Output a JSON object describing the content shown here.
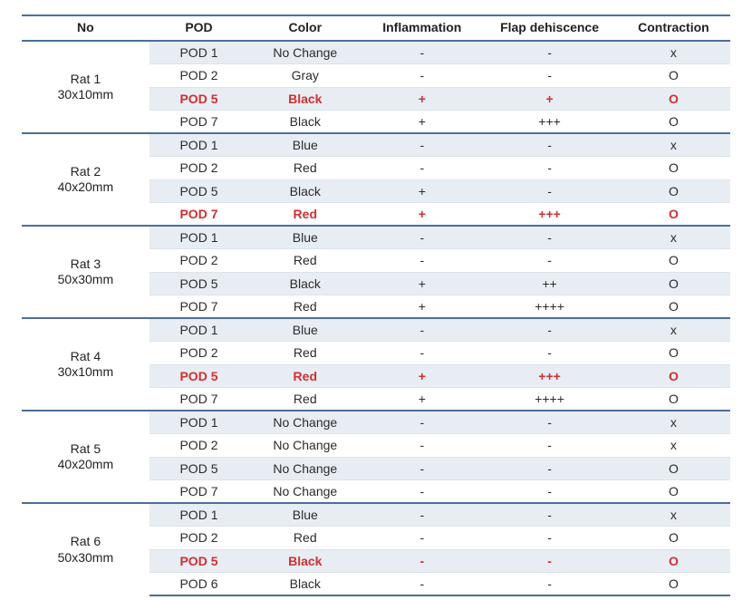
{
  "table": {
    "type": "table",
    "colors": {
      "border_main": "#4a6f99",
      "border_row": "#dde3ea",
      "row_shade": "#e8edf4",
      "text": "#2b2b2b",
      "highlight": "#d22f2f",
      "background": "#ffffff"
    },
    "font": {
      "family": "Malgun Gothic",
      "size_pt": 14,
      "header_weight": 700
    },
    "columns": [
      "No",
      "POD",
      "Color",
      "Inflammation",
      "Flap dehiscence",
      "Contraction"
    ],
    "groups": [
      {
        "label": "Rat 1",
        "sub": "30x10mm",
        "rows": [
          {
            "pod": "POD 1",
            "color": "No Change",
            "inflammation": "-",
            "flap": "-",
            "contraction": "x",
            "shade": true,
            "highlight": false
          },
          {
            "pod": "POD 2",
            "color": "Gray",
            "inflammation": "-",
            "flap": "-",
            "contraction": "O",
            "shade": false,
            "highlight": false
          },
          {
            "pod": "POD 5",
            "color": "Black",
            "inflammation": "+",
            "flap": "+",
            "contraction": "O",
            "shade": true,
            "highlight": true
          },
          {
            "pod": "POD 7",
            "color": "Black",
            "inflammation": "+",
            "flap": "+++",
            "contraction": "O",
            "shade": false,
            "highlight": false
          }
        ]
      },
      {
        "label": "Rat 2",
        "sub": "40x20mm",
        "rows": [
          {
            "pod": "POD 1",
            "color": "Blue",
            "inflammation": "-",
            "flap": "-",
            "contraction": "x",
            "shade": true,
            "highlight": false
          },
          {
            "pod": "POD 2",
            "color": "Red",
            "inflammation": "-",
            "flap": "-",
            "contraction": "O",
            "shade": false,
            "highlight": false
          },
          {
            "pod": "POD 5",
            "color": "Black",
            "inflammation": "+",
            "flap": "-",
            "contraction": "O",
            "shade": true,
            "highlight": false
          },
          {
            "pod": "POD 7",
            "color": "Red",
            "inflammation": "+",
            "flap": "+++",
            "contraction": "O",
            "shade": false,
            "highlight": true
          }
        ]
      },
      {
        "label": "Rat 3",
        "sub": "50x30mm",
        "rows": [
          {
            "pod": "POD 1",
            "color": "Blue",
            "inflammation": "-",
            "flap": "-",
            "contraction": "x",
            "shade": true,
            "highlight": false
          },
          {
            "pod": "POD 2",
            "color": "Red",
            "inflammation": "-",
            "flap": "-",
            "contraction": "O",
            "shade": false,
            "highlight": false
          },
          {
            "pod": "POD 5",
            "color": "Black",
            "inflammation": "+",
            "flap": "++",
            "contraction": "O",
            "shade": true,
            "highlight": false
          },
          {
            "pod": "POD 7",
            "color": "Red",
            "inflammation": "+",
            "flap": "++++",
            "contraction": "O",
            "shade": false,
            "highlight": false
          }
        ]
      },
      {
        "label": "Rat 4",
        "sub": "30x10mm",
        "rows": [
          {
            "pod": "POD 1",
            "color": "Blue",
            "inflammation": "-",
            "flap": "-",
            "contraction": "x",
            "shade": true,
            "highlight": false
          },
          {
            "pod": "POD 2",
            "color": "Red",
            "inflammation": "-",
            "flap": "-",
            "contraction": "O",
            "shade": false,
            "highlight": false
          },
          {
            "pod": "POD 5",
            "color": "Red",
            "inflammation": "+",
            "flap": "+++",
            "contraction": "O",
            "shade": true,
            "highlight": true
          },
          {
            "pod": "POD 7",
            "color": "Red",
            "inflammation": "+",
            "flap": "++++",
            "contraction": "O",
            "shade": false,
            "highlight": false
          }
        ]
      },
      {
        "label": "Rat 5",
        "sub": "40x20mm",
        "rows": [
          {
            "pod": "POD 1",
            "color": "No Change",
            "inflammation": "-",
            "flap": "-",
            "contraction": "x",
            "shade": true,
            "highlight": false
          },
          {
            "pod": "POD 2",
            "color": "No Change",
            "inflammation": "-",
            "flap": "-",
            "contraction": "x",
            "shade": false,
            "highlight": false
          },
          {
            "pod": "POD 5",
            "color": "No Change",
            "inflammation": "-",
            "flap": "-",
            "contraction": "O",
            "shade": true,
            "highlight": false
          },
          {
            "pod": "POD 7",
            "color": "No Change",
            "inflammation": "-",
            "flap": "-",
            "contraction": "O",
            "shade": false,
            "highlight": false
          }
        ]
      },
      {
        "label": "Rat 6",
        "sub": "50x30mm",
        "rows": [
          {
            "pod": "POD 1",
            "color": "Blue",
            "inflammation": "-",
            "flap": "-",
            "contraction": "x",
            "shade": true,
            "highlight": false
          },
          {
            "pod": "POD 2",
            "color": "Red",
            "inflammation": "-",
            "flap": "-",
            "contraction": "O",
            "shade": false,
            "highlight": false
          },
          {
            "pod": "POD 5",
            "color": "Black",
            "inflammation": "-",
            "flap": "-",
            "contraction": "O",
            "shade": true,
            "highlight": true
          },
          {
            "pod": "POD 6",
            "color": "Black",
            "inflammation": "-",
            "flap": "-",
            "contraction": "O",
            "shade": false,
            "highlight": false
          }
        ]
      }
    ]
  }
}
